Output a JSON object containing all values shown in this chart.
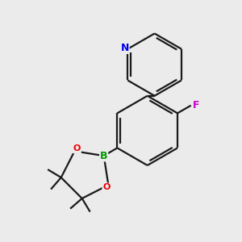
{
  "bg_color": "#ebebeb",
  "bond_color": "#1a1a1a",
  "N_color": "#0000ee",
  "F_color": "#cc00cc",
  "B_color": "#009900",
  "O_color": "#ee0000",
  "lw": 1.6,
  "dbo": 0.012,
  "xlim": [
    0.0,
    1.0
  ],
  "ylim": [
    0.0,
    1.0
  ]
}
